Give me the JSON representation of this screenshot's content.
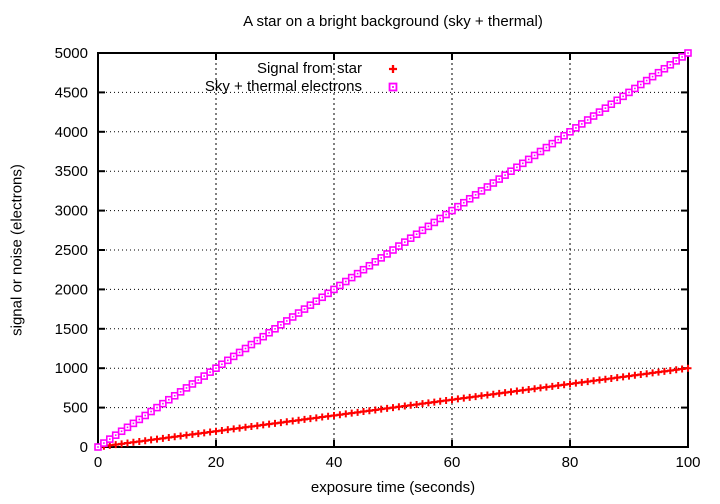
{
  "figure": {
    "background": "#ffffff",
    "border_color": "#000000"
  },
  "chart_data": {
    "type": "line",
    "title": "A star on a bright background (sky + thermal)",
    "xlabel": "exposure time (seconds)",
    "ylabel": "signal or noise (electrons)",
    "xlim": [
      0,
      100
    ],
    "ylim": [
      0,
      5000
    ],
    "x_ticks": [
      0,
      20,
      40,
      60,
      80,
      100
    ],
    "y_ticks": [
      0,
      500,
      1000,
      1500,
      2000,
      2500,
      3000,
      3500,
      4000,
      4500,
      5000
    ],
    "grid": true,
    "legend_position": "top-center-inside",
    "x": [
      0,
      1,
      2,
      3,
      4,
      5,
      6,
      7,
      8,
      9,
      10,
      11,
      12,
      13,
      14,
      15,
      16,
      17,
      18,
      19,
      20,
      21,
      22,
      23,
      24,
      25,
      26,
      27,
      28,
      29,
      30,
      31,
      32,
      33,
      34,
      35,
      36,
      37,
      38,
      39,
      40,
      41,
      42,
      43,
      44,
      45,
      46,
      47,
      48,
      49,
      50,
      51,
      52,
      53,
      54,
      55,
      56,
      57,
      58,
      59,
      60,
      61,
      62,
      63,
      64,
      65,
      66,
      67,
      68,
      69,
      70,
      71,
      72,
      73,
      74,
      75,
      76,
      77,
      78,
      79,
      80,
      81,
      82,
      83,
      84,
      85,
      86,
      87,
      88,
      89,
      90,
      91,
      92,
      93,
      94,
      95,
      96,
      97,
      98,
      99,
      100
    ],
    "series": [
      {
        "name": "Signal from star",
        "marker": "plus",
        "color": "#ff0000",
        "values": [
          0,
          10,
          20,
          30,
          40,
          50,
          60,
          70,
          80,
          90,
          100,
          110,
          120,
          130,
          140,
          150,
          160,
          170,
          180,
          190,
          200,
          210,
          220,
          230,
          240,
          250,
          260,
          270,
          280,
          290,
          300,
          310,
          320,
          330,
          340,
          350,
          360,
          370,
          380,
          390,
          400,
          410,
          420,
          430,
          440,
          450,
          460,
          470,
          480,
          490,
          500,
          510,
          520,
          530,
          540,
          550,
          560,
          570,
          580,
          590,
          600,
          610,
          620,
          630,
          640,
          650,
          660,
          670,
          680,
          690,
          700,
          710,
          720,
          730,
          740,
          750,
          760,
          770,
          780,
          790,
          800,
          810,
          820,
          830,
          840,
          850,
          860,
          870,
          880,
          890,
          900,
          910,
          920,
          930,
          940,
          950,
          960,
          970,
          980,
          990,
          1000
        ]
      },
      {
        "name": "Sky + thermal electrons",
        "marker": "open-square",
        "color": "#ff00ff",
        "values": [
          0,
          50,
          100,
          150,
          200,
          250,
          300,
          350,
          400,
          450,
          500,
          550,
          600,
          650,
          700,
          750,
          800,
          850,
          900,
          950,
          1000,
          1050,
          1100,
          1150,
          1200,
          1250,
          1300,
          1350,
          1400,
          1450,
          1500,
          1550,
          1600,
          1650,
          1700,
          1750,
          1800,
          1850,
          1900,
          1950,
          2000,
          2050,
          2100,
          2150,
          2200,
          2250,
          2300,
          2350,
          2400,
          2450,
          2500,
          2550,
          2600,
          2650,
          2700,
          2750,
          2800,
          2850,
          2900,
          2950,
          3000,
          3050,
          3100,
          3150,
          3200,
          3250,
          3300,
          3350,
          3400,
          3450,
          3500,
          3550,
          3600,
          3650,
          3700,
          3750,
          3800,
          3850,
          3900,
          3950,
          4000,
          4050,
          4100,
          4150,
          4200,
          4250,
          4300,
          4350,
          4400,
          4450,
          4500,
          4550,
          4600,
          4650,
          4700,
          4750,
          4800,
          4850,
          4900,
          4950,
          5000
        ]
      }
    ]
  }
}
